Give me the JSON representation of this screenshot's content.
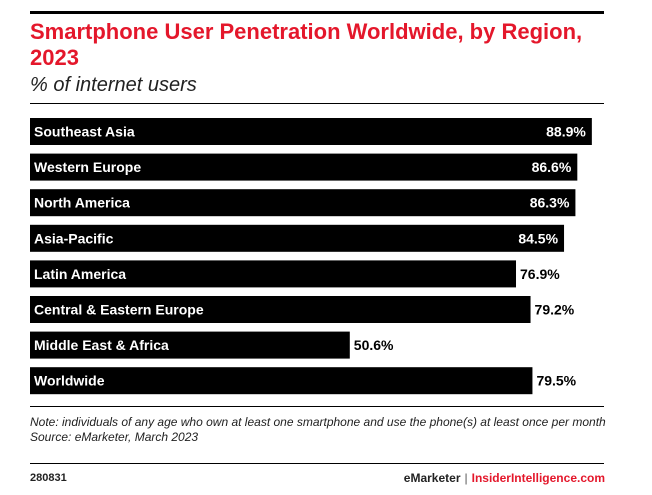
{
  "chart_data": {
    "type": "bar",
    "orientation": "horizontal",
    "title": "Smartphone User Penetration Worldwide, by Region, 2023",
    "subtitle": "% of internet users",
    "categories": [
      "Southeast Asia",
      "Western Europe",
      "North America",
      "Asia-Pacific",
      "Latin America",
      "Central & Eastern Europe",
      "Middle East & Africa",
      "Worldwide"
    ],
    "values": [
      88.9,
      86.6,
      86.3,
      84.5,
      76.9,
      79.2,
      50.6,
      79.5
    ],
    "value_labels": [
      "88.9%",
      "86.6%",
      "86.3%",
      "84.5%",
      "76.9%",
      "79.2%",
      "50.6%",
      "79.5%"
    ],
    "xlim": [
      0,
      100
    ],
    "bar_color": "#000000",
    "label_color": "#ffffff"
  },
  "footer": {
    "note": "Note: individuals of any age who own at least one smartphone and use the phone(s) at least once per month",
    "source": "Source: eMarketer, March 2023",
    "chart_id": "280831",
    "brand_primary": "eMarketer",
    "brand_separator": "|",
    "brand_secondary": "InsiderIntelligence.com"
  },
  "colors": {
    "title": "#e4172b",
    "text": "#222222"
  }
}
